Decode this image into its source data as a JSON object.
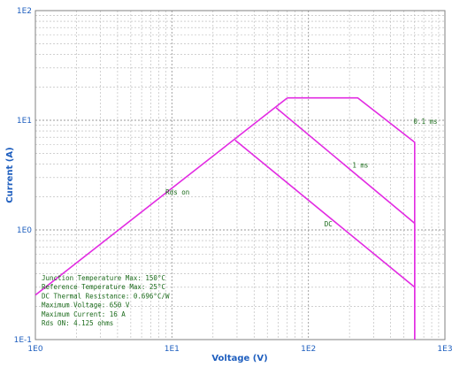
{
  "chart_data": {
    "type": "line",
    "xscale": "log",
    "yscale": "log",
    "xlim": [
      1,
      1000
    ],
    "ylim": [
      0.1,
      100
    ],
    "xlabel": "Voltage (V)",
    "ylabel": "Current (A)",
    "grid": true,
    "x_ticks": [
      "1E0",
      "1E1",
      "1E2",
      "1E3"
    ],
    "y_ticks": [
      "1E-1",
      "1E0",
      "1E1",
      "1E2"
    ],
    "line_color": "#e22be2",
    "series": [
      {
        "name": "Rds on",
        "x": [
          1,
          70
        ],
        "y": [
          0.255,
          16
        ]
      },
      {
        "name": "0.1 ms",
        "x": [
          70,
          230,
          600,
          600
        ],
        "y": [
          16,
          16,
          6.3,
          0.1
        ]
      },
      {
        "name": "1 ms",
        "x": [
          58,
          600,
          600
        ],
        "y": [
          13,
          1.15,
          0.1
        ]
      },
      {
        "name": "DC",
        "x": [
          29,
          600
        ],
        "y": [
          6.6,
          0.3
        ]
      }
    ],
    "annotations": [
      {
        "text": "Rds on",
        "x": 11,
        "y": 2.1
      },
      {
        "text": "0.1 ms",
        "x": 720,
        "y": 9.3
      },
      {
        "text": "1 ms",
        "x": 240,
        "y": 3.7
      },
      {
        "text": "DC",
        "x": 140,
        "y": 1.08
      }
    ],
    "info_lines": [
      "Junction Temperature Max: 150°C",
      "Reference Temperature Max: 25°C",
      "DC Thermal Resistance: 0.696°C/W",
      "Maximum Voltage: 650  V",
      "Maximum Current: 16 A",
      "Rds ON: 4.125 ohms"
    ]
  }
}
